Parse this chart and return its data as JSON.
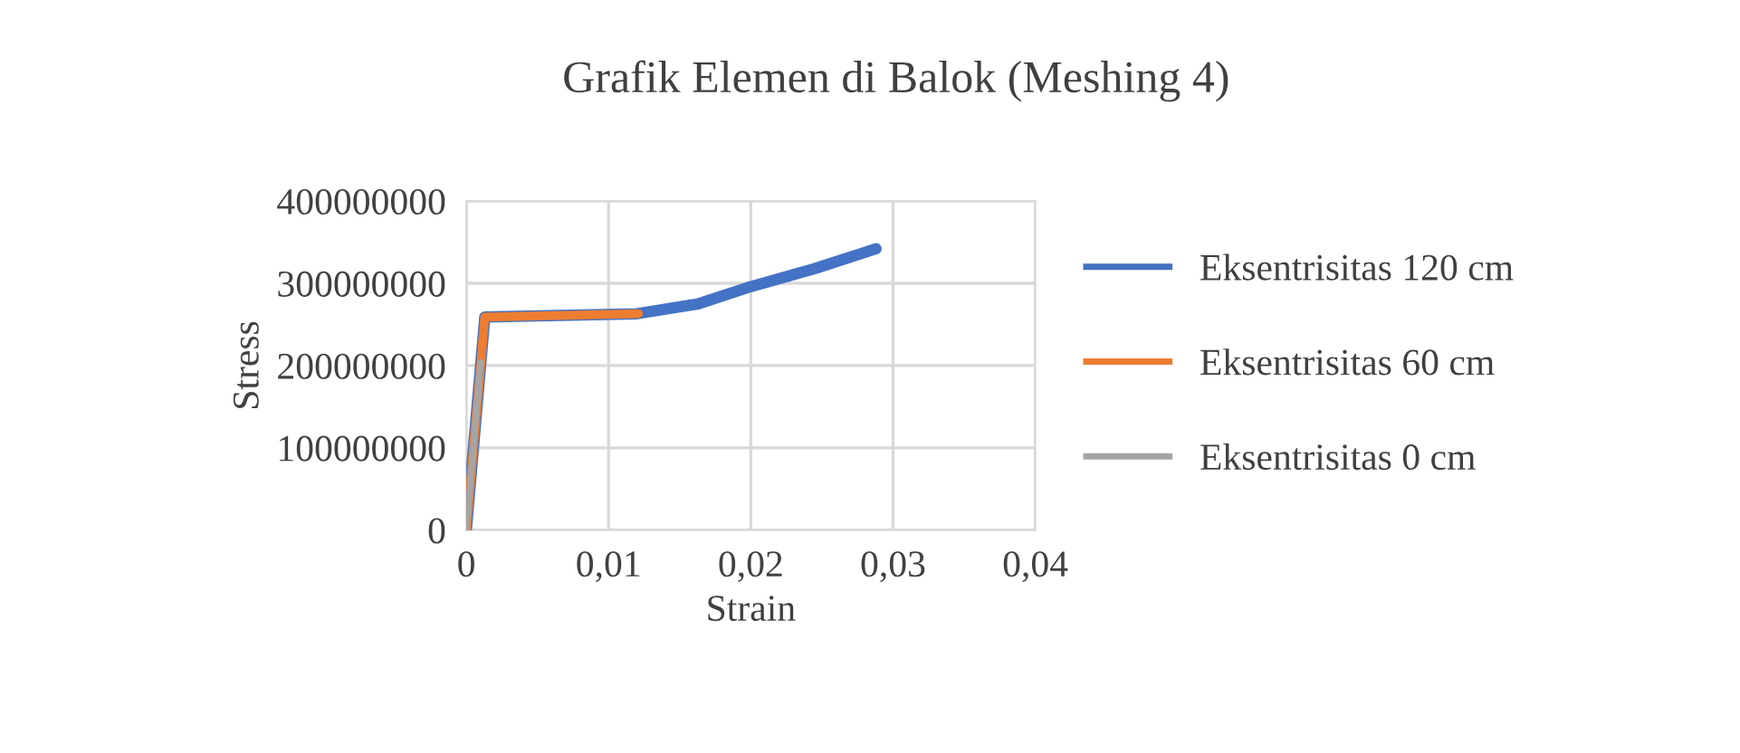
{
  "chart_data": {
    "type": "line",
    "title": "Grafik Elemen di Balok (Meshing 4)",
    "xlabel": "Strain",
    "ylabel": "Stress",
    "series": [
      {
        "name": "Eksentrisitas 120 cm",
        "color": "#4472c4",
        "x": [
          0,
          0.0013,
          0.012,
          0.0163,
          0.02,
          0.0245,
          0.0288
        ],
        "values": [
          0,
          259000000,
          263000000,
          275000000,
          296000000,
          318000000,
          342000000
        ]
      },
      {
        "name": "Eksentrisitas 60 cm",
        "color": "#ed7d31",
        "x": [
          0,
          0.0013,
          0.0121
        ],
        "values": [
          0,
          259000000,
          263000000
        ]
      },
      {
        "name": "Eksentrisitas 0 cm",
        "color": "#a5a5a5",
        "x": [
          0,
          0.001
        ],
        "values": [
          0,
          204000000
        ]
      }
    ],
    "xlim": [
      0,
      0.04
    ],
    "xticks": [
      0,
      {
        "value": 0.01,
        "label": "0,01"
      },
      {
        "value": 0.02,
        "label": "0,02"
      },
      {
        "value": 0.03,
        "label": "0,03"
      },
      {
        "value": 0.04,
        "label": "0,04"
      }
    ],
    "ylim": [
      0,
      400000000
    ],
    "yticks": [
      0,
      100000000,
      200000000,
      300000000,
      400000000
    ],
    "grid": true,
    "legend": "right",
    "marker": "none",
    "line_style": "solid"
  }
}
